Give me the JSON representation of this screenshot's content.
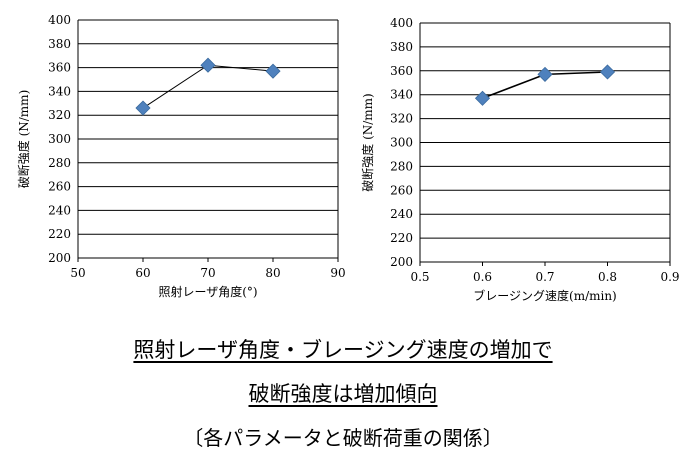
{
  "chart_data": [
    {
      "type": "line",
      "xlabel": "照射レーザ角度(°)",
      "ylabel": "破断強度 (N/mm)",
      "xlim": [
        50,
        90
      ],
      "ylim": [
        200,
        400
      ],
      "xticks": [
        50,
        60,
        70,
        80,
        90
      ],
      "yticks": [
        200,
        220,
        240,
        260,
        280,
        300,
        320,
        340,
        360,
        380,
        400
      ],
      "grid": "horizontal",
      "marker": "diamond",
      "series": [
        {
          "x": [
            60,
            70,
            80
          ],
          "values": [
            326,
            362,
            357
          ],
          "color": "#4f81bd"
        }
      ]
    },
    {
      "type": "line",
      "xlabel": "ブレージング速度(m/min)",
      "ylabel": "破断強度 (N/mm)",
      "xlim": [
        0.5,
        0.9
      ],
      "ylim": [
        200,
        400
      ],
      "xticks": [
        "0.5",
        "0.6",
        "0.7",
        "0.8",
        "0.9"
      ],
      "yticks": [
        200,
        220,
        240,
        260,
        280,
        300,
        320,
        340,
        360,
        380,
        400
      ],
      "grid": "horizontal",
      "marker": "diamond",
      "series": [
        {
          "x": [
            0.6,
            0.7,
            0.8
          ],
          "values": [
            337,
            357,
            359
          ],
          "color": "#4f81bd"
        }
      ]
    }
  ],
  "caption": {
    "line1": "照射レーザ角度・ブレージング速度の増加で",
    "line2": "破断強度は増加傾向",
    "line3": "〔各パラメータと破断荷重の関係〕"
  }
}
